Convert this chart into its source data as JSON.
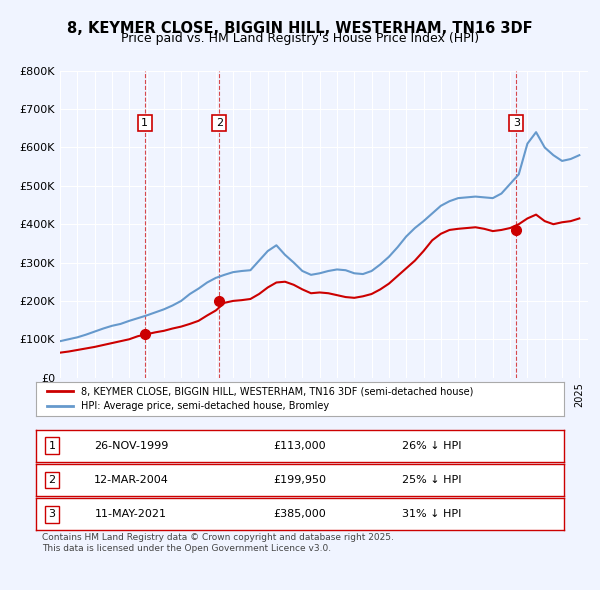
{
  "title": "8, KEYMER CLOSE, BIGGIN HILL, WESTERHAM, TN16 3DF",
  "subtitle": "Price paid vs. HM Land Registry's House Price Index (HPI)",
  "title_fontsize": 11,
  "subtitle_fontsize": 9.5,
  "bg_color": "#f0f4ff",
  "plot_bg_color": "#f0f4ff",
  "legend_line1": "8, KEYMER CLOSE, BIGGIN HILL, WESTERHAM, TN16 3DF (semi-detached house)",
  "legend_line2": "HPI: Average price, semi-detached house, Bromley",
  "red_color": "#cc0000",
  "blue_color": "#6699cc",
  "sale_dates": [
    1999.9,
    2004.2,
    2021.36
  ],
  "sale_prices": [
    113000,
    199950,
    385000
  ],
  "sale_labels": [
    "1",
    "2",
    "3"
  ],
  "table_rows": [
    [
      "1",
      "26-NOV-1999",
      "£113,000",
      "26% ↓ HPI"
    ],
    [
      "2",
      "12-MAR-2004",
      "£199,950",
      "25% ↓ HPI"
    ],
    [
      "3",
      "11-MAY-2021",
      "£385,000",
      "31% ↓ HPI"
    ]
  ],
  "footnote": "Contains HM Land Registry data © Crown copyright and database right 2025.\nThis data is licensed under the Open Government Licence v3.0.",
  "hpi_years": [
    1995,
    1996,
    1997,
    1998,
    1999,
    2000,
    2001,
    2002,
    2003,
    2004,
    2005,
    2006,
    2007,
    2008,
    2009,
    2010,
    2011,
    2012,
    2013,
    2014,
    2015,
    2016,
    2017,
    2018,
    2019,
    2020,
    2021,
    2022,
    2023,
    2024,
    2025
  ],
  "hpi_values": [
    95000,
    105000,
    115000,
    130000,
    140000,
    160000,
    180000,
    205000,
    235000,
    265000,
    280000,
    285000,
    340000,
    295000,
    270000,
    290000,
    285000,
    275000,
    295000,
    330000,
    380000,
    420000,
    455000,
    470000,
    475000,
    470000,
    510000,
    620000,
    580000,
    570000,
    590000
  ],
  "house_years": [
    1995,
    1996,
    1997,
    1998,
    1999,
    2000,
    2001,
    2002,
    2003,
    2004,
    2005,
    2006,
    2007,
    2008,
    2009,
    2010,
    2011,
    2012,
    2013,
    2014,
    2015,
    2016,
    2017,
    2018,
    2019,
    2020,
    2021,
    2022,
    2023,
    2024,
    2025
  ],
  "house_values": [
    65000,
    70000,
    75000,
    80000,
    88000,
    100000,
    108000,
    115000,
    128000,
    150000,
    200000,
    205000,
    245000,
    235000,
    215000,
    225000,
    210000,
    215000,
    225000,
    250000,
    295000,
    330000,
    375000,
    380000,
    395000,
    380000,
    400000,
    420000,
    400000,
    410000,
    415000
  ],
  "xlim": [
    1995,
    2025.5
  ],
  "ylim": [
    0,
    800000
  ],
  "yticks": [
    0,
    100000,
    200000,
    300000,
    400000,
    500000,
    600000,
    700000,
    800000
  ],
  "ytick_labels": [
    "£0",
    "£100K",
    "£200K",
    "£300K",
    "£400K",
    "£500K",
    "£600K",
    "£700K",
    "£800K"
  ]
}
